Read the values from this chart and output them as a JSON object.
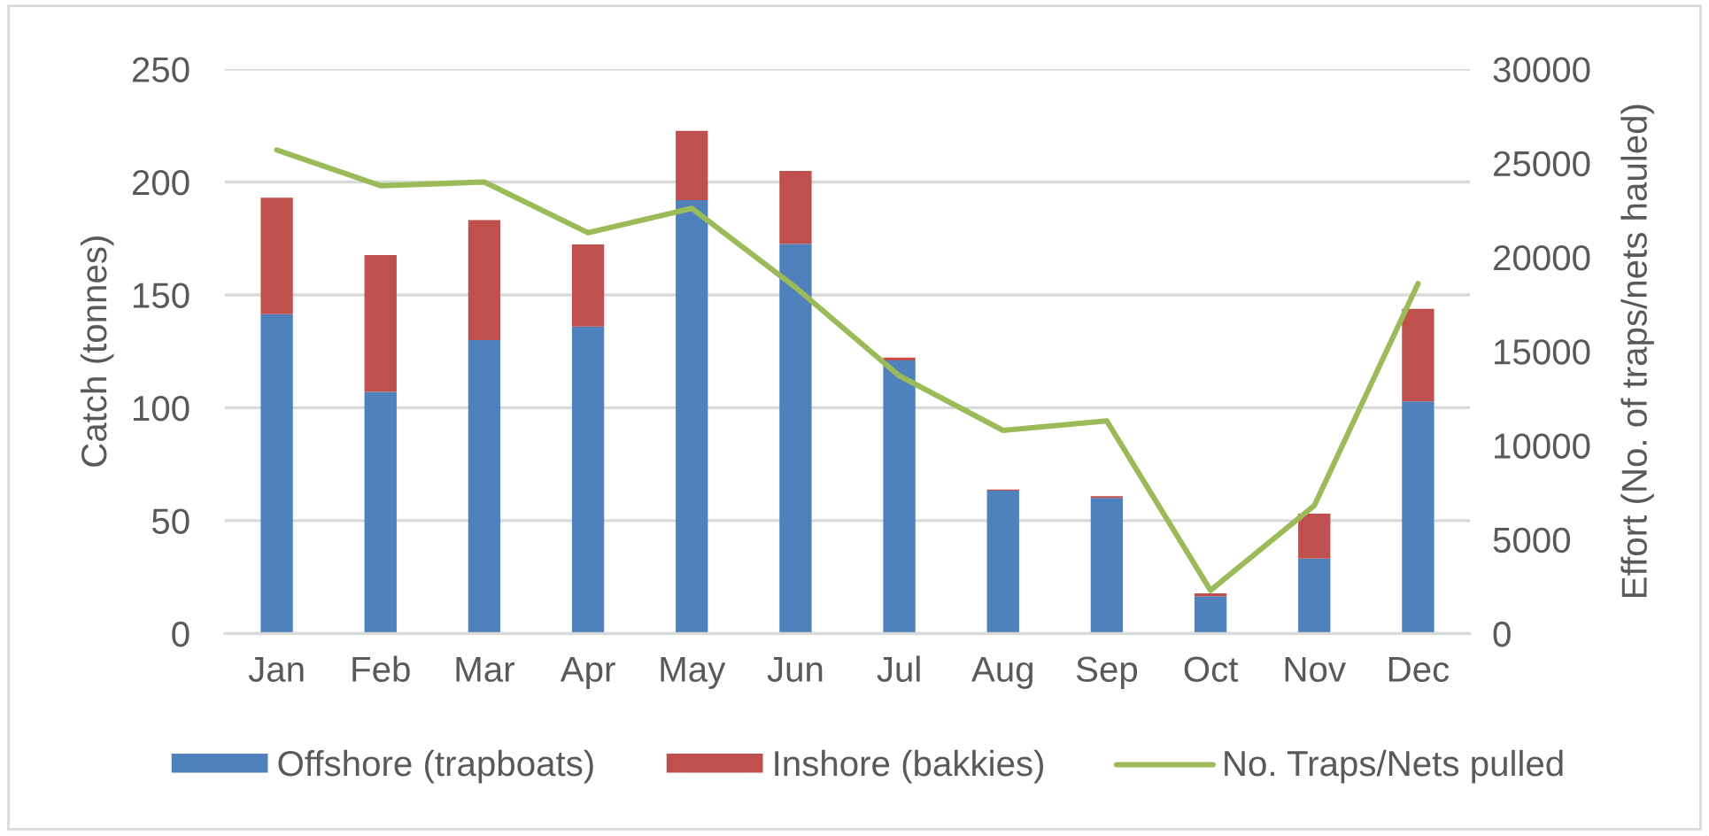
{
  "chart_data": {
    "type": "bar",
    "stacked": true,
    "categories": [
      "Jan",
      "Feb",
      "Mar",
      "Apr",
      "May",
      "Jun",
      "Jul",
      "Aug",
      "Sep",
      "Oct",
      "Nov",
      "Dec"
    ],
    "series": [
      {
        "name": "Offshore (trapboats)",
        "color": "#4f81bd",
        "values": [
          141.5,
          107,
          130,
          136,
          192,
          172.5,
          121,
          63.3,
          60.1,
          16.5,
          33.2,
          102.8
        ]
      },
      {
        "name": "Inshore (bakkies)",
        "color": "#c0504d",
        "values": [
          51.5,
          60.6,
          53.1,
          36.3,
          30.6,
          32.4,
          1.2,
          0.5,
          0.8,
          1.3,
          19.9,
          41
        ]
      },
      {
        "name": "No. Traps/Nets pulled",
        "type": "line",
        "axis": "y2",
        "color": "#9bbb59",
        "values": [
          25700,
          23800,
          24000,
          21300,
          22600,
          18400,
          13700,
          10800,
          11300,
          2300,
          6800,
          18600
        ]
      }
    ],
    "ylabel": "Catch (tonnes)",
    "y2label": "Effort (No. of traps/nets hauled)",
    "ylim": [
      0,
      250
    ],
    "yticks": [
      0,
      50,
      100,
      150,
      200,
      250
    ],
    "y2lim": [
      0,
      30000
    ],
    "y2ticks": [
      0,
      5000,
      10000,
      15000,
      20000,
      25000,
      30000
    ],
    "grid": "y",
    "legend": "bottom"
  }
}
